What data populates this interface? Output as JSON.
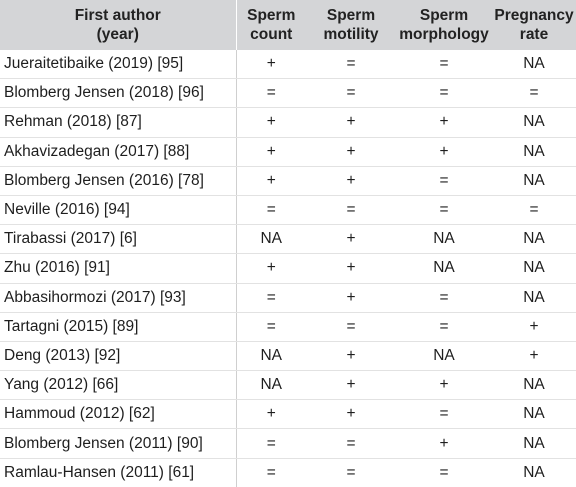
{
  "header": {
    "author": [
      "First author",
      "(year)"
    ],
    "count": [
      "Sperm",
      "count"
    ],
    "motility": [
      "Sperm",
      "motility"
    ],
    "morphology": [
      "Sperm",
      "morphology"
    ],
    "pregnancy": [
      "Pregnancy",
      "rate"
    ]
  },
  "rows": [
    {
      "author": "Jueraitetibaike (2019) [95]",
      "count": "+",
      "motility": "=",
      "morphology": "=",
      "pregnancy": "NA"
    },
    {
      "author": "Blomberg Jensen (2018) [96]",
      "count": "=",
      "motility": "=",
      "morphology": "=",
      "pregnancy": "="
    },
    {
      "author": "Rehman (2018) [87]",
      "count": "+",
      "motility": "+",
      "morphology": "+",
      "pregnancy": "NA"
    },
    {
      "author": "Akhavizadegan (2017) [88]",
      "count": "+",
      "motility": "+",
      "morphology": "+",
      "pregnancy": "NA"
    },
    {
      "author": "Blomberg Jensen (2016) [78]",
      "count": "+",
      "motility": "+",
      "morphology": "=",
      "pregnancy": "NA"
    },
    {
      "author": "Neville (2016) [94]",
      "count": "=",
      "motility": "=",
      "morphology": "=",
      "pregnancy": "="
    },
    {
      "author": "Tirabassi (2017) [6]",
      "count": "NA",
      "motility": "+",
      "morphology": "NA",
      "pregnancy": "NA"
    },
    {
      "author": "Zhu (2016) [91]",
      "count": "+",
      "motility": "+",
      "morphology": "NA",
      "pregnancy": "NA"
    },
    {
      "author": "Abbasihormozi (2017) [93]",
      "count": "=",
      "motility": "+",
      "morphology": "=",
      "pregnancy": "NA"
    },
    {
      "author": "Tartagni (2015) [89]",
      "count": "=",
      "motility": "=",
      "morphology": "=",
      "pregnancy": "+"
    },
    {
      "author": "Deng (2013) [92]",
      "count": "NA",
      "motility": "+",
      "morphology": "NA",
      "pregnancy": "+"
    },
    {
      "author": "Yang (2012) [66]",
      "count": "NA",
      "motility": "+",
      "morphology": "+",
      "pregnancy": "NA"
    },
    {
      "author": "Hammoud (2012) [62]",
      "count": "+",
      "motility": "+",
      "morphology": "=",
      "pregnancy": "NA"
    },
    {
      "author": "Blomberg Jensen (2011) [90]",
      "count": "=",
      "motility": "=",
      "morphology": "+",
      "pregnancy": "NA"
    },
    {
      "author": "Ramlau-Hansen (2011) [61]",
      "count": "=",
      "motility": "=",
      "morphology": "=",
      "pregnancy": "NA"
    }
  ]
}
